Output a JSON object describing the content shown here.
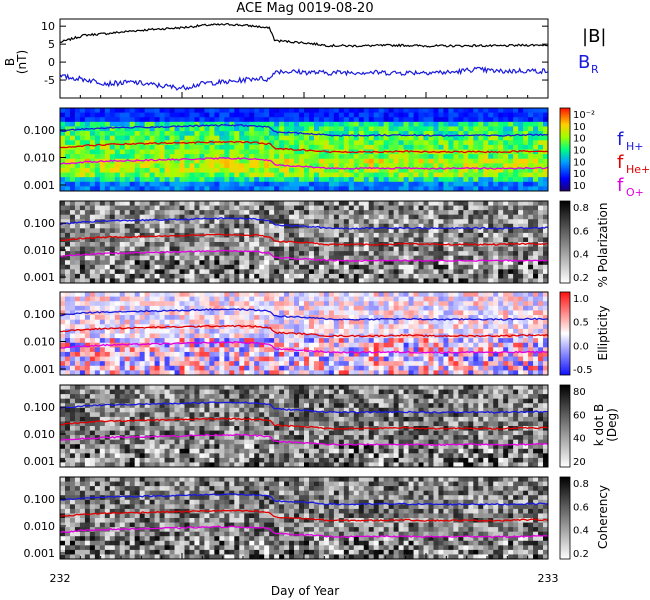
{
  "chart_data": [
    {
      "type": "line",
      "title": "ACE Mag 0019-08-20",
      "ylabel": "B (nT)",
      "ylim": [
        -10,
        12
      ],
      "yticks": [
        "10",
        "5",
        "0",
        "-5"
      ],
      "xlim": [
        232,
        233
      ],
      "series": [
        {
          "name": "|B|",
          "color": "#000000",
          "x": [
            232.0,
            232.05,
            232.1,
            232.15,
            232.2,
            232.25,
            232.3,
            232.35,
            232.4,
            232.43,
            232.44,
            232.5,
            232.55,
            232.6,
            232.65,
            232.7,
            232.75,
            232.8,
            232.85,
            232.9,
            232.95,
            233.0
          ],
          "values": [
            5.5,
            7.5,
            8.0,
            8.7,
            9.2,
            9.6,
            10.3,
            10.5,
            10.0,
            9.4,
            6.0,
            5.4,
            4.6,
            4.5,
            4.6,
            4.7,
            4.5,
            4.5,
            4.6,
            4.5,
            4.7,
            4.8
          ]
        },
        {
          "name": "B_R",
          "color": "#1a1adc",
          "x": [
            232.0,
            232.05,
            232.1,
            232.15,
            232.2,
            232.25,
            232.3,
            232.35,
            232.4,
            232.43,
            232.44,
            232.5,
            232.55,
            232.6,
            232.65,
            232.7,
            232.75,
            232.8,
            232.85,
            232.9,
            232.95,
            233.0
          ],
          "values": [
            -4.0,
            -4.8,
            -6.0,
            -5.6,
            -6.5,
            -7.2,
            -5.8,
            -5.5,
            -4.5,
            -4.8,
            -2.5,
            -2.8,
            -3.0,
            -2.8,
            -2.9,
            -3.0,
            -2.8,
            -2.9,
            -2.0,
            -2.6,
            -2.4,
            -2.5
          ]
        }
      ]
    },
    {
      "type": "heatmap",
      "yscale": "log",
      "yticks": [
        "0.100",
        "0.010",
        "0.001"
      ],
      "colorbar": {
        "colormap": "jet",
        "ticks": [
          "10⁻²",
          "10",
          "10",
          "10",
          "10",
          "10",
          "10"
        ]
      },
      "lines": [
        {
          "name": "f_H+",
          "color": "#1a1adc"
        },
        {
          "name": "f_He+",
          "color": "#e00000"
        },
        {
          "name": "f_O+",
          "color": "#e000e0"
        }
      ]
    },
    {
      "type": "heatmap",
      "yscale": "log",
      "yticks": [
        "0.100",
        "0.010",
        "0.001"
      ],
      "colorbar": {
        "label": "% Polarization",
        "colormap": "gray",
        "ticks": [
          "0.8",
          "0.6",
          "0.4",
          "0.2"
        ]
      }
    },
    {
      "type": "heatmap",
      "yscale": "log",
      "yticks": [
        "0.100",
        "0.010",
        "0.001"
      ],
      "colorbar": {
        "label": "Ellipticity",
        "colormap": "blue-white-red",
        "ticks": [
          "1.0",
          "0.5",
          "0.0",
          "-0.5"
        ]
      }
    },
    {
      "type": "heatmap",
      "yscale": "log",
      "yticks": [
        "0.100",
        "0.010",
        "0.001"
      ],
      "colorbar": {
        "label": "k dot B (Deg)",
        "colormap": "gray",
        "ticks": [
          "80",
          "60",
          "40",
          "20"
        ]
      }
    },
    {
      "type": "heatmap",
      "yscale": "log",
      "yticks": [
        "0.100",
        "0.010",
        "0.001"
      ],
      "colorbar": {
        "label": "Coherency",
        "colormap": "gray",
        "ticks": [
          "0.8",
          "0.6",
          "0.4",
          "0.2"
        ]
      }
    }
  ],
  "xaxis": {
    "label": "Day of Year",
    "ticks": [
      "232",
      "233"
    ]
  },
  "freq_lines": {
    "x": [
      232.0,
      232.05,
      232.1,
      232.15,
      232.2,
      232.25,
      232.3,
      232.35,
      232.4,
      232.43,
      232.44,
      232.5,
      232.55,
      232.6,
      232.65,
      232.7,
      232.75,
      232.8,
      232.85,
      232.9,
      232.95,
      233.0
    ],
    "H": [
      0.09,
      0.11,
      0.12,
      0.125,
      0.13,
      0.135,
      0.145,
      0.15,
      0.14,
      0.125,
      0.085,
      0.075,
      0.065,
      0.063,
      0.065,
      0.066,
      0.064,
      0.063,
      0.065,
      0.063,
      0.066,
      0.068
    ],
    "He": [
      0.023,
      0.027,
      0.03,
      0.031,
      0.033,
      0.034,
      0.036,
      0.037,
      0.035,
      0.031,
      0.021,
      0.019,
      0.016,
      0.016,
      0.016,
      0.017,
      0.016,
      0.016,
      0.016,
      0.016,
      0.017,
      0.017
    ],
    "O": [
      0.0058,
      0.0068,
      0.0075,
      0.0078,
      0.0082,
      0.0085,
      0.0091,
      0.0094,
      0.0088,
      0.0078,
      0.0053,
      0.0047,
      0.0041,
      0.004,
      0.0041,
      0.0041,
      0.004,
      0.004,
      0.0041,
      0.004,
      0.0041,
      0.0042
    ]
  },
  "labels": {
    "bmag": "|B|",
    "br_main": "B",
    "br_sub": "R",
    "fh_main": "f",
    "fh_sub": "H+",
    "fhe_main": "f",
    "fhe_sub": "He+",
    "fo_main": "f",
    "fo_sub": "O+",
    "b_label": "B",
    "b_unit": "(nT)",
    "kdotb_line1": "k dot B",
    "kdotb_line2": "(Deg)"
  }
}
